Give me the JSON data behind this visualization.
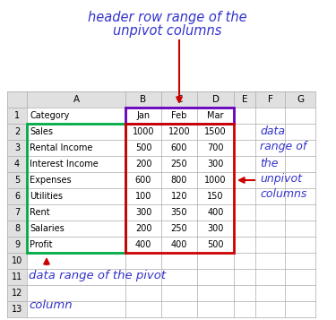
{
  "table_data": [
    [
      "Category",
      "Jan",
      "Feb",
      "Mar"
    ],
    [
      "Sales",
      "1000",
      "1200",
      "1500"
    ],
    [
      "Rental Income",
      "500",
      "600",
      "700"
    ],
    [
      "Interest Income",
      "200",
      "250",
      "300"
    ],
    [
      "Expenses",
      "600",
      "800",
      "1000"
    ],
    [
      "Utilities",
      "100",
      "120",
      "150"
    ],
    [
      "Rent",
      "300",
      "350",
      "400"
    ],
    [
      "Salaries",
      "200",
      "250",
      "300"
    ],
    [
      "Profit",
      "400",
      "400",
      "500"
    ]
  ],
  "col_labels": [
    "A",
    "B",
    "C",
    "D",
    "E",
    "F",
    "G"
  ],
  "row_labels": [
    "1",
    "2",
    "3",
    "4",
    "5",
    "6",
    "7",
    "8",
    "9",
    "10",
    "11",
    "12",
    "13"
  ],
  "title_line1": "header row range of the",
  "title_line2": "unpivot columns",
  "right_lines": [
    "data",
    "range of",
    "the",
    "unpivot",
    "columns"
  ],
  "bottom_line1": "data range of the pivot",
  "bottom_line2": "column",
  "title_color": "#3333cc",
  "annotation_color": "#3333cc",
  "arrow_color": "#cc0000",
  "grid_color": "#aaaaaa",
  "header_bg": "#e0e0e0",
  "green_box_color": "#00aa44",
  "red_box_color": "#cc0000",
  "purple_box_color": "#6600bb",
  "white": "#ffffff"
}
